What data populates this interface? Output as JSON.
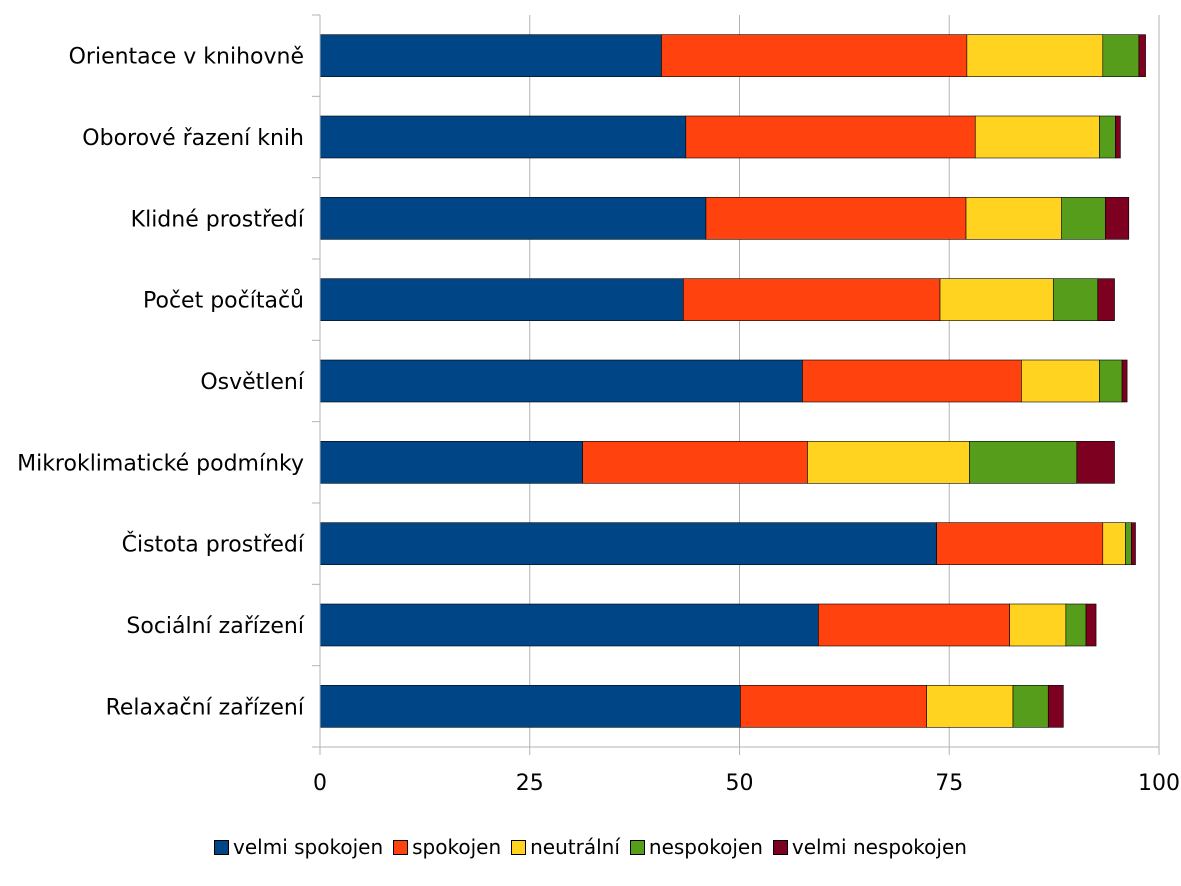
{
  "chart_data": {
    "type": "bar",
    "orientation": "horizontal",
    "stacked": true,
    "title": "",
    "xlabel": "",
    "ylabel": "",
    "xlim": [
      0,
      100
    ],
    "x_ticks": [
      0,
      25,
      50,
      75,
      100
    ],
    "grid": "vertical major gridlines",
    "legend_position": "bottom",
    "categories": [
      "Orientace v knihovně",
      "Oborové řazení knih",
      "Klidné prostředí",
      "Počet počítačů",
      "Osvětlení",
      "Mikroklimatické podmínky",
      "Čistota prostředí",
      "Sociální zařízení",
      "Relaxační zařízení"
    ],
    "series": [
      {
        "name": "velmi spokojen",
        "color": "#004586",
        "values": [
          40.7,
          43.6,
          46.0,
          43.3,
          57.5,
          31.3,
          73.5,
          59.4,
          50.1
        ]
      },
      {
        "name": "spokojen",
        "color": "#ff420e",
        "values": [
          36.4,
          34.5,
          31.0,
          30.6,
          26.1,
          26.8,
          19.8,
          22.8,
          22.2
        ]
      },
      {
        "name": "neutrální",
        "color": "#ffd320",
        "values": [
          16.2,
          14.8,
          11.4,
          13.5,
          9.3,
          19.3,
          2.7,
          6.7,
          10.3
        ]
      },
      {
        "name": "nespokojen",
        "color": "#579d1c",
        "values": [
          4.3,
          1.9,
          5.2,
          5.3,
          2.7,
          12.8,
          0.7,
          2.4,
          4.2
        ]
      },
      {
        "name": "velmi nespokojen",
        "color": "#7e0021",
        "values": [
          0.8,
          0.6,
          2.8,
          2.0,
          0.6,
          4.5,
          0.5,
          1.2,
          1.8
        ]
      }
    ]
  }
}
